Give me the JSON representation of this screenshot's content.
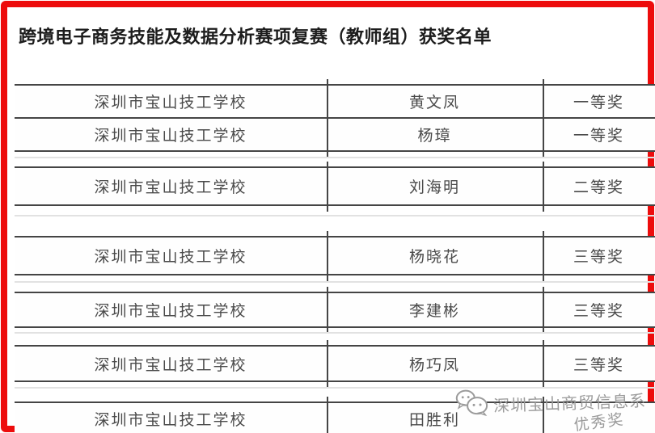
{
  "page": {
    "title": "跨境电子商务技能及数据分析赛项复赛（教师组）获奖名单",
    "border_color": "#ed0c0c",
    "line_color": "#454545",
    "faint_line_color": "#e2e2e2",
    "text_color": "#4a4a4a",
    "faded_award_color": "#9a9a9a"
  },
  "table": {
    "columns": [
      "school",
      "name",
      "award"
    ],
    "segments": [
      {
        "rows": [
          {
            "school": "深圳市宝山技工学校",
            "name": "黄文凤",
            "award": "一等奖"
          },
          {
            "school": "深圳市宝山技工学校",
            "name": "杨璋",
            "award": "一等奖"
          }
        ]
      },
      {
        "rows": [
          {
            "school": "深圳市宝山技工学校",
            "name": "刘海明",
            "award": "二等奖"
          }
        ]
      },
      {
        "rows": [
          {
            "school": "深圳市宝山技工学校",
            "name": "杨晓花",
            "award": "三等奖"
          }
        ]
      },
      {
        "rows": [
          {
            "school": "深圳市宝山技工学校",
            "name": "李建彬",
            "award": "三等奖"
          }
        ]
      },
      {
        "rows": [
          {
            "school": "深圳市宝山技工学校",
            "name": "杨巧凤",
            "award": "三等奖"
          }
        ]
      },
      {
        "rows": [
          {
            "school": "深圳市宝山技工学校",
            "name": "田胜利",
            "award": "优秀奖",
            "award_faded": true
          }
        ]
      }
    ]
  },
  "watermark": {
    "icon": "wechat-icon",
    "text": "深圳宝山商贸信息系",
    "color": "#9b9b9b"
  }
}
